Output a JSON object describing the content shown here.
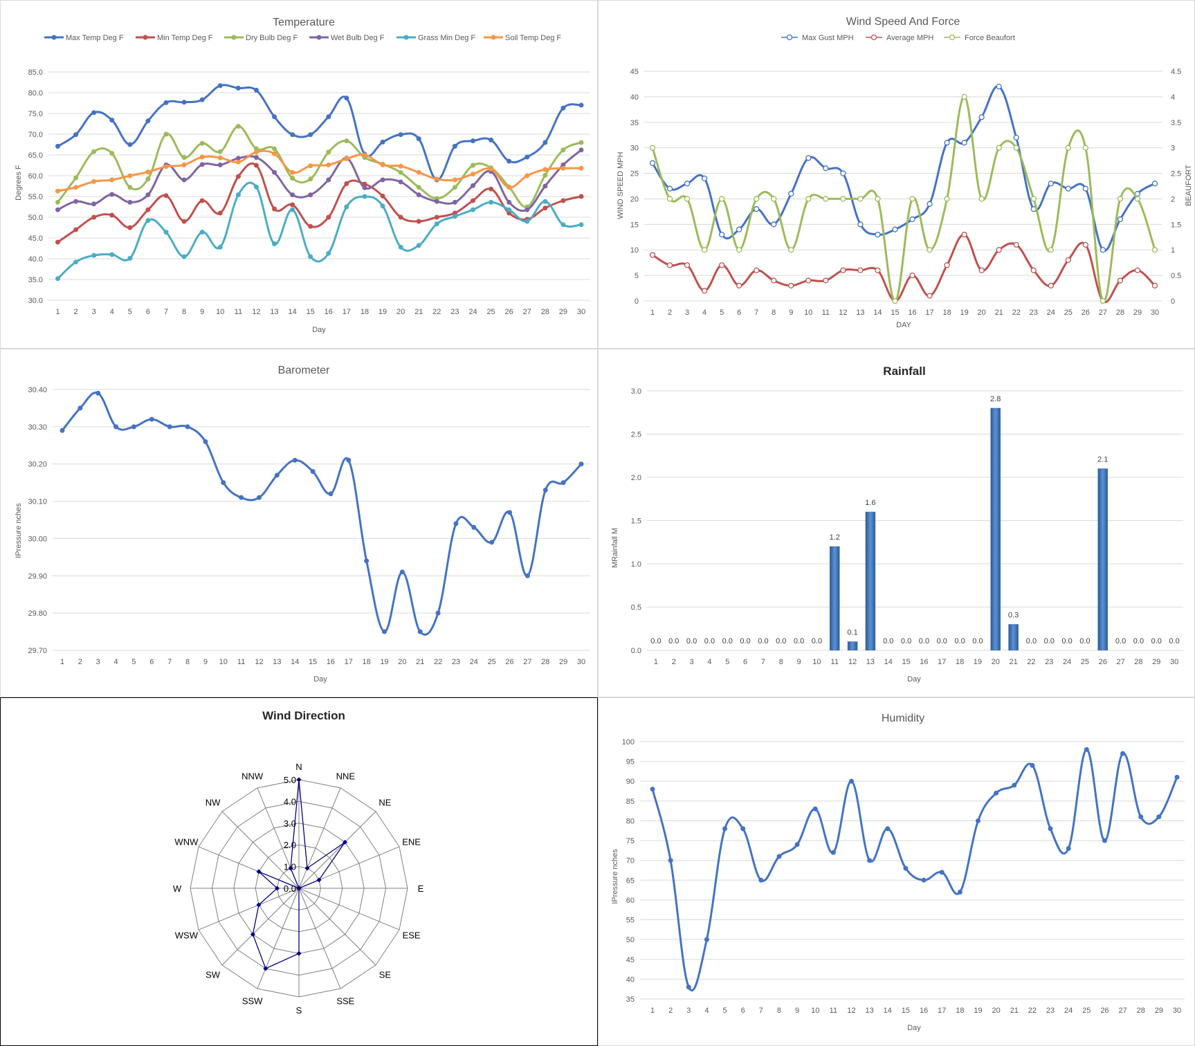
{
  "chart_data": [
    {
      "id": "temperature",
      "type": "line",
      "title": "Temperature",
      "xlabel": "Day",
      "ylabel": "Degrees F",
      "ylim": [
        30,
        85
      ],
      "yticks": [
        "30.0",
        "35.0",
        "40.0",
        "45.0",
        "50.0",
        "55.0",
        "60.0",
        "65.0",
        "70.0",
        "75.0",
        "80.0",
        "85.0"
      ],
      "legend_position": "top",
      "grid": true,
      "x": [
        1,
        2,
        3,
        4,
        5,
        6,
        7,
        8,
        9,
        10,
        11,
        12,
        13,
        14,
        15,
        16,
        17,
        18,
        19,
        20,
        21,
        22,
        23,
        24,
        25,
        26,
        27,
        28,
        29,
        30
      ],
      "series": [
        {
          "name": "Max Temp Deg F",
          "color": "#4472C4",
          "values": [
            67.1,
            69.9,
            75.2,
            73.4,
            67.5,
            73.2,
            77.6,
            77.7,
            78.3,
            81.7,
            81.1,
            80.6,
            74.2,
            69.9,
            69.9,
            74.2,
            78.7,
            65.2,
            68.1,
            69.9,
            68.9,
            59.0,
            67.1,
            68.4,
            68.6,
            63.5,
            64.5,
            68.0,
            76.3,
            77.0
          ]
        },
        {
          "name": "Min Temp Deg F",
          "color": "#C0504D",
          "values": [
            44.0,
            47.0,
            50.0,
            50.5,
            47.5,
            51.8,
            55.2,
            49.0,
            54.0,
            51.0,
            59.8,
            62.5,
            52.0,
            53.0,
            47.8,
            50.0,
            58.1,
            58.0,
            55.1,
            50.0,
            49.0,
            50.0,
            51.0,
            54.0,
            56.8,
            51.0,
            49.5,
            52.2,
            54.0,
            55.0
          ]
        },
        {
          "name": "Dry Bulb Deg F",
          "color": "#9BBB59",
          "values": [
            53.6,
            59.5,
            65.8,
            65.4,
            57.2,
            59.2,
            70.0,
            64.4,
            67.8,
            65.8,
            71.9,
            66.5,
            66.5,
            59.4,
            59.2,
            65.7,
            68.4,
            64.4,
            62.8,
            60.8,
            57.2,
            54.5,
            57.2,
            62.5,
            61.9,
            57.3,
            52.5,
            60.1,
            66.2,
            68.0
          ]
        },
        {
          "name": "Wet Bulb Deg F",
          "color": "#8064A2",
          "values": [
            51.8,
            53.8,
            53.2,
            55.5,
            53.6,
            55.4,
            62.6,
            59.0,
            62.7,
            62.6,
            64.2,
            64.4,
            60.8,
            55.4,
            55.4,
            59.0,
            64.2,
            57.1,
            59.0,
            58.5,
            55.4,
            53.8,
            53.6,
            57.6,
            61.0,
            53.6,
            51.8,
            57.5,
            62.6,
            66.2
          ]
        },
        {
          "name": "Grass Min Deg F",
          "color": "#4BACC6",
          "values": [
            35.2,
            39.2,
            40.8,
            41.0,
            40.1,
            49.2,
            46.4,
            40.5,
            46.4,
            42.8,
            55.4,
            57.3,
            43.6,
            51.8,
            40.5,
            41.3,
            52.5,
            55.0,
            52.7,
            42.8,
            43.2,
            48.4,
            50.2,
            51.8,
            53.6,
            51.8,
            49.0,
            53.8,
            48.2,
            48.2
          ]
        },
        {
          "name": "Soil Temp Deg F",
          "color": "#F79646",
          "values": [
            56.3,
            57.2,
            58.6,
            59.0,
            60.0,
            60.9,
            62.2,
            62.6,
            64.5,
            64.3,
            63.3,
            65.7,
            65.3,
            60.8,
            62.4,
            62.6,
            64.1,
            65.0,
            62.6,
            62.3,
            60.8,
            59.2,
            59.0,
            60.4,
            61.6,
            57.2,
            60.0,
            61.5,
            61.8,
            61.8
          ]
        }
      ]
    },
    {
      "id": "wind",
      "type": "line",
      "title": "Wind Speed And Force",
      "xlabel": "DAY",
      "ylabel": "WIND SPEED MPH",
      "y2label": "BEAUFORT",
      "ylim": [
        0,
        45
      ],
      "y2lim": [
        0,
        4.5
      ],
      "yticks": [
        "0",
        "5",
        "10",
        "15",
        "20",
        "25",
        "30",
        "35",
        "40",
        "45"
      ],
      "y2ticks": [
        "0",
        "0.5",
        "1",
        "1.5",
        "2",
        "2.5",
        "3",
        "3.5",
        "4",
        "4.5"
      ],
      "legend_position": "top",
      "grid": true,
      "x": [
        1,
        2,
        3,
        4,
        5,
        6,
        7,
        8,
        9,
        10,
        11,
        12,
        13,
        14,
        15,
        16,
        17,
        18,
        19,
        20,
        21,
        22,
        23,
        24,
        25,
        26,
        27,
        28,
        29,
        30
      ],
      "series": [
        {
          "name": "Max Gust MPH",
          "color": "#4472C4",
          "axis": "left",
          "values": [
            27,
            22,
            23,
            24,
            13,
            14,
            18,
            15,
            21,
            28,
            26,
            25,
            15,
            13,
            14,
            16,
            19,
            31,
            31,
            36,
            42,
            32,
            18,
            23,
            22,
            22,
            10,
            16,
            21,
            23
          ]
        },
        {
          "name": "Average MPH",
          "color": "#C0504D",
          "axis": "left",
          "values": [
            9,
            7,
            7,
            2,
            7,
            3,
            6,
            4,
            3,
            4,
            4,
            6,
            6,
            6,
            0,
            5,
            1,
            7,
            13,
            6,
            10,
            11,
            6,
            3,
            8,
            11,
            0,
            4,
            6,
            3
          ]
        },
        {
          "name": "Force Beaufort",
          "color": "#9BBB59",
          "axis": "right",
          "values": [
            3,
            2,
            2,
            1,
            2,
            1,
            2,
            2,
            1,
            2,
            2,
            2,
            2,
            2,
            0,
            2,
            1,
            2,
            4,
            2,
            3,
            3,
            2,
            1,
            3,
            3,
            0,
            2,
            2,
            1
          ]
        }
      ]
    },
    {
      "id": "barometer",
      "type": "line",
      "title": "Barometer",
      "xlabel": "Day",
      "ylabel": "IPressure nches",
      "ylim": [
        29.7,
        30.4
      ],
      "yticks": [
        "29.70",
        "29.80",
        "29.90",
        "30.00",
        "30.10",
        "30.20",
        "30.30",
        "30.40"
      ],
      "grid": true,
      "x": [
        1,
        2,
        3,
        4,
        5,
        6,
        7,
        8,
        9,
        10,
        11,
        12,
        13,
        14,
        15,
        16,
        17,
        18,
        19,
        20,
        21,
        22,
        23,
        24,
        25,
        26,
        27,
        28,
        29,
        30
      ],
      "series": [
        {
          "name": "",
          "color": "#4472C4",
          "values": [
            30.29,
            30.35,
            30.39,
            30.3,
            30.3,
            30.32,
            30.3,
            30.3,
            30.26,
            30.15,
            30.11,
            30.11,
            30.17,
            30.21,
            30.18,
            30.12,
            30.21,
            29.94,
            29.75,
            29.91,
            29.75,
            29.8,
            30.04,
            30.03,
            29.99,
            30.07,
            29.9,
            30.13,
            30.15,
            30.2
          ]
        }
      ]
    },
    {
      "id": "rainfall",
      "type": "bar",
      "title": "Rainfall",
      "xlabel": "Day",
      "ylabel": "MRainfall M",
      "ylim": [
        0,
        3.0
      ],
      "yticks": [
        "0.0",
        "0.5",
        "1.0",
        "1.5",
        "2.0",
        "2.5",
        "3.0"
      ],
      "grid": true,
      "categories": [
        "1",
        "2",
        "3",
        "4",
        "5",
        "6",
        "7",
        "8",
        "9",
        "10",
        "11",
        "12",
        "13",
        "14",
        "15",
        "16",
        "17",
        "18",
        "19",
        "20",
        "21",
        "22",
        "23",
        "24",
        "25",
        "26",
        "27",
        "28",
        "29",
        "30"
      ],
      "values": [
        0,
        0,
        0,
        0,
        0,
        0,
        0,
        0,
        0,
        0,
        1.2,
        0.1,
        1.6,
        0,
        0,
        0,
        0,
        0,
        0,
        2.8,
        0.3,
        0,
        0,
        0,
        0,
        2.1,
        0,
        0,
        0,
        0
      ],
      "data_labels": [
        "0.0",
        "0.0",
        "0.0",
        "0.0",
        "0.0",
        "0.0",
        "0.0",
        "0.0",
        "0.0",
        "0.0",
        "1.2",
        "0.1",
        "1.6",
        "0.0",
        "0.0",
        "0.0",
        "0.0",
        "0.0",
        "0.0",
        "2.8",
        "0.3",
        "0.0",
        "0.0",
        "0.0",
        "0.0",
        "2.1",
        "0.0",
        "0.0",
        "0.0",
        "0.0"
      ],
      "color": "#4F81BD"
    },
    {
      "id": "winddir",
      "type": "radar",
      "title": "Wind Direction",
      "rmax": 5,
      "rticks": [
        "0.0",
        "1.0",
        "2.0",
        "3.0",
        "4.0",
        "5.0"
      ],
      "directions": [
        "N",
        "NNE",
        "NE",
        "ENE",
        "E",
        "ESE",
        "SE",
        "SSE",
        "S",
        "SSW",
        "SW",
        "WSW",
        "W",
        "WNW",
        "NW",
        "NNW"
      ],
      "values": [
        5,
        1,
        3,
        1,
        0,
        0,
        0,
        0,
        3,
        4,
        3,
        2,
        1,
        2,
        0,
        1
      ],
      "color": "#000080"
    },
    {
      "id": "humidity",
      "type": "line",
      "title": "Humidity",
      "xlabel": "Day",
      "ylabel": "IPressure nches",
      "ylim": [
        35,
        100
      ],
      "yticks": [
        "35",
        "40",
        "45",
        "50",
        "55",
        "60",
        "65",
        "70",
        "75",
        "80",
        "85",
        "90",
        "95",
        "100"
      ],
      "grid": true,
      "x": [
        1,
        2,
        3,
        4,
        5,
        6,
        7,
        8,
        9,
        10,
        11,
        12,
        13,
        14,
        15,
        16,
        17,
        18,
        19,
        20,
        21,
        22,
        23,
        24,
        25,
        26,
        27,
        28,
        29,
        30
      ],
      "series": [
        {
          "name": "",
          "color": "#4472C4",
          "values": [
            88,
            70,
            38,
            50,
            78,
            78,
            65,
            71,
            74,
            83,
            72,
            90,
            70,
            78,
            68,
            65,
            67,
            62,
            80,
            87,
            89,
            94,
            78,
            73,
            98,
            75,
            97,
            81,
            81,
            91
          ]
        }
      ]
    }
  ]
}
